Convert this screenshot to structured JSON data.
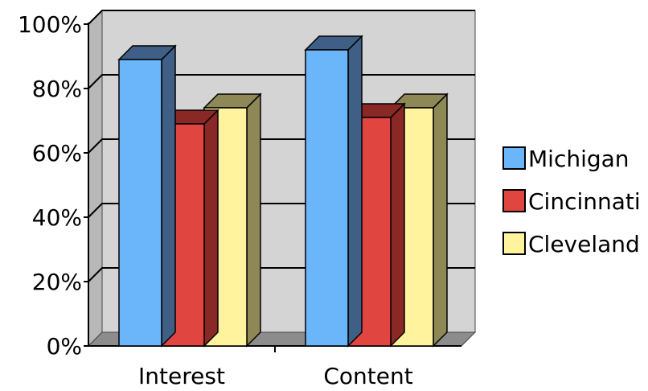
{
  "chart_data": {
    "type": "bar",
    "style": "3d-clustered-column",
    "categories": [
      "Interest",
      "Content"
    ],
    "series": [
      {
        "name": "Michigan",
        "values": [
          89,
          92
        ],
        "color": "#6bb6fb",
        "side": "#3f5f86"
      },
      {
        "name": "Cincinnati",
        "values": [
          69,
          71
        ],
        "color": "#e04540",
        "side": "#8a2826"
      },
      {
        "name": "Cleveland",
        "values": [
          74,
          74
        ],
        "color": "#fff39e",
        "side": "#8e8756"
      }
    ],
    "y_ticks": [
      "0%",
      "20%",
      "40%",
      "60%",
      "80%",
      "100%"
    ],
    "ylim": [
      0,
      100
    ],
    "grid": true,
    "legend_position": "right",
    "wall_color": "#d4d4d4",
    "floor_color": "#8c8c8c"
  }
}
